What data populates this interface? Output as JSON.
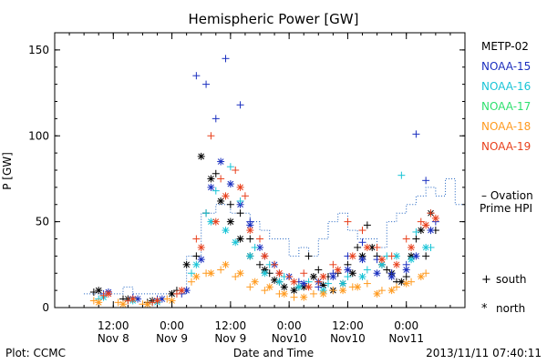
{
  "chart_data": {
    "type": "scatter",
    "title": "Hemispheric Power [GW]",
    "ylabel": "P [GW]",
    "xlabel": "Date and Time",
    "ylim": [
      0,
      160
    ],
    "xlim": [
      0,
      84
    ],
    "grid": false,
    "legend_position": "right",
    "yticks": [
      {
        "v": 0,
        "label": "0"
      },
      {
        "v": 50,
        "label": "50"
      },
      {
        "v": 100,
        "label": "100"
      },
      {
        "v": 150,
        "label": "150"
      }
    ],
    "xticks": [
      {
        "v": 12,
        "l1": "12:00",
        "l2": "Nov 8"
      },
      {
        "v": 24,
        "l1": "0:00",
        "l2": "Nov 9"
      },
      {
        "v": 36,
        "l1": "12:00",
        "l2": "Nov 9"
      },
      {
        "v": 48,
        "l1": "0:00",
        "l2": "Nov10"
      },
      {
        "v": 60,
        "l1": "12:00",
        "l2": "Nov10"
      },
      {
        "v": 72,
        "l1": "0:00",
        "l2": "Nov11"
      }
    ],
    "markers_note": {
      "south": "+",
      "north": "*"
    },
    "series": [
      {
        "name": "METP-02",
        "color": "#000000",
        "south": [
          [
            8,
            9
          ],
          [
            14,
            5
          ],
          [
            19,
            3
          ],
          [
            25,
            10
          ],
          [
            29,
            30
          ],
          [
            31,
            55
          ],
          [
            33,
            78
          ],
          [
            36,
            60
          ],
          [
            38,
            55
          ],
          [
            40,
            40
          ],
          [
            42,
            25
          ],
          [
            44,
            20
          ],
          [
            46,
            15
          ],
          [
            50,
            12
          ],
          [
            52,
            30
          ],
          [
            54,
            22
          ],
          [
            56,
            18
          ],
          [
            58,
            20
          ],
          [
            60,
            25
          ],
          [
            62,
            35
          ],
          [
            64,
            48
          ],
          [
            66,
            30
          ],
          [
            68,
            22
          ],
          [
            70,
            15
          ],
          [
            72,
            18
          ],
          [
            74,
            40
          ],
          [
            76,
            30
          ],
          [
            78,
            45
          ]
        ],
        "north": [
          [
            9,
            10
          ],
          [
            15,
            5
          ],
          [
            20,
            4
          ],
          [
            24,
            8
          ],
          [
            27,
            25
          ],
          [
            30,
            88
          ],
          [
            32,
            75
          ],
          [
            34,
            62
          ],
          [
            36,
            50
          ],
          [
            38,
            40
          ],
          [
            40,
            30
          ],
          [
            43,
            22
          ],
          [
            45,
            16
          ],
          [
            47,
            12
          ],
          [
            49,
            10
          ],
          [
            51,
            12
          ],
          [
            53,
            18
          ],
          [
            55,
            13
          ],
          [
            57,
            10
          ],
          [
            59,
            14
          ],
          [
            61,
            20
          ],
          [
            63,
            30
          ],
          [
            65,
            35
          ],
          [
            67,
            25
          ],
          [
            69,
            20
          ],
          [
            71,
            15
          ],
          [
            73,
            30
          ],
          [
            75,
            45
          ],
          [
            77,
            55
          ]
        ]
      },
      {
        "name": "NOAA-15",
        "color": "#1a2fbf",
        "south": [
          [
            10,
            8
          ],
          [
            16,
            6
          ],
          [
            21,
            5
          ],
          [
            26,
            8
          ],
          [
            29,
            135
          ],
          [
            31,
            130
          ],
          [
            33,
            110
          ],
          [
            35,
            145
          ],
          [
            38,
            118
          ],
          [
            40,
            50
          ],
          [
            43,
            30
          ],
          [
            46,
            20
          ],
          [
            50,
            15
          ],
          [
            54,
            12
          ],
          [
            57,
            20
          ],
          [
            60,
            30
          ],
          [
            63,
            38
          ],
          [
            66,
            28
          ],
          [
            69,
            20
          ],
          [
            72,
            25
          ],
          [
            74,
            101
          ],
          [
            76,
            74
          ],
          [
            78,
            50
          ]
        ],
        "north": [
          [
            11,
            9
          ],
          [
            17,
            5
          ],
          [
            22,
            5
          ],
          [
            27,
            10
          ],
          [
            30,
            28
          ],
          [
            32,
            70
          ],
          [
            34,
            85
          ],
          [
            36,
            72
          ],
          [
            38,
            60
          ],
          [
            40,
            48
          ],
          [
            42,
            35
          ],
          [
            45,
            25
          ],
          [
            48,
            18
          ],
          [
            51,
            14
          ],
          [
            54,
            15
          ],
          [
            57,
            18
          ],
          [
            60,
            22
          ],
          [
            63,
            28
          ],
          [
            66,
            20
          ],
          [
            69,
            18
          ],
          [
            72,
            22
          ],
          [
            74,
            30
          ],
          [
            77,
            45
          ]
        ]
      },
      {
        "name": "NOAA-16",
        "color": "#19c4d6",
        "south": [
          [
            9,
            5
          ],
          [
            15,
            4
          ],
          [
            20,
            3
          ],
          [
            28,
            20
          ],
          [
            31,
            55
          ],
          [
            33,
            68
          ],
          [
            36,
            82
          ],
          [
            38,
            62
          ],
          [
            41,
            35
          ],
          [
            44,
            25
          ],
          [
            47,
            18
          ],
          [
            52,
            15
          ],
          [
            56,
            14
          ],
          [
            60,
            18
          ],
          [
            64,
            22
          ],
          [
            68,
            30
          ],
          [
            71,
            77
          ],
          [
            74,
            44
          ],
          [
            77,
            35
          ]
        ],
        "north": [
          [
            10,
            6
          ],
          [
            16,
            4
          ],
          [
            21,
            3
          ],
          [
            29,
            25
          ],
          [
            32,
            50
          ],
          [
            35,
            45
          ],
          [
            37,
            38
          ],
          [
            40,
            30
          ],
          [
            43,
            20
          ],
          [
            46,
            15
          ],
          [
            50,
            12
          ],
          [
            55,
            10
          ],
          [
            59,
            14
          ],
          [
            63,
            18
          ],
          [
            67,
            25
          ],
          [
            70,
            30
          ],
          [
            73,
            28
          ],
          [
            76,
            35
          ]
        ]
      },
      {
        "name": "NOAA-17",
        "color": "#2ee06f",
        "south": [],
        "north": []
      },
      {
        "name": "NOAA-18",
        "color": "#ff9a1f",
        "south": [
          [
            8,
            4
          ],
          [
            13,
            3
          ],
          [
            18,
            2
          ],
          [
            23,
            5
          ],
          [
            28,
            15
          ],
          [
            31,
            20
          ],
          [
            34,
            22
          ],
          [
            37,
            18
          ],
          [
            40,
            12
          ],
          [
            43,
            10
          ],
          [
            46,
            8
          ],
          [
            49,
            6
          ],
          [
            53,
            8
          ],
          [
            57,
            10
          ],
          [
            61,
            12
          ],
          [
            64,
            14
          ],
          [
            67,
            10
          ],
          [
            70,
            12
          ],
          [
            73,
            15
          ],
          [
            76,
            20
          ]
        ],
        "north": [
          [
            9,
            3
          ],
          [
            14,
            2
          ],
          [
            19,
            2
          ],
          [
            24,
            4
          ],
          [
            29,
            18
          ],
          [
            32,
            20
          ],
          [
            35,
            25
          ],
          [
            38,
            20
          ],
          [
            41,
            15
          ],
          [
            44,
            12
          ],
          [
            47,
            8
          ],
          [
            51,
            6
          ],
          [
            55,
            8
          ],
          [
            59,
            10
          ],
          [
            62,
            12
          ],
          [
            66,
            8
          ],
          [
            69,
            10
          ],
          [
            72,
            14
          ],
          [
            75,
            18
          ]
        ]
      },
      {
        "name": "NOAA-19",
        "color": "#e8401c",
        "south": [
          [
            10,
            7
          ],
          [
            15,
            4
          ],
          [
            20,
            3
          ],
          [
            25,
            8
          ],
          [
            29,
            40
          ],
          [
            32,
            100
          ],
          [
            34,
            75
          ],
          [
            37,
            80
          ],
          [
            39,
            65
          ],
          [
            42,
            40
          ],
          [
            45,
            25
          ],
          [
            48,
            18
          ],
          [
            51,
            20
          ],
          [
            54,
            15
          ],
          [
            57,
            25
          ],
          [
            60,
            50
          ],
          [
            63,
            45
          ],
          [
            66,
            35
          ],
          [
            69,
            30
          ],
          [
            72,
            40
          ],
          [
            75,
            50
          ],
          [
            77,
            55
          ]
        ],
        "north": [
          [
            11,
            8
          ],
          [
            16,
            5
          ],
          [
            21,
            4
          ],
          [
            26,
            10
          ],
          [
            30,
            35
          ],
          [
            33,
            50
          ],
          [
            35,
            65
          ],
          [
            38,
            70
          ],
          [
            40,
            45
          ],
          [
            43,
            30
          ],
          [
            46,
            20
          ],
          [
            49,
            15
          ],
          [
            52,
            12
          ],
          [
            55,
            18
          ],
          [
            58,
            22
          ],
          [
            61,
            30
          ],
          [
            64,
            35
          ],
          [
            67,
            28
          ],
          [
            70,
            25
          ],
          [
            73,
            35
          ],
          [
            76,
            48
          ],
          [
            78,
            52
          ]
        ]
      }
    ],
    "ovation": {
      "name": "Ovation Prime HPI",
      "label_line1": "– Ovation",
      "label_line2": "Prime HPI",
      "color": "#1a5fbf",
      "values": [
        [
          6,
          8
        ],
        [
          12,
          8
        ],
        [
          14,
          12
        ],
        [
          16,
          8
        ],
        [
          22,
          8
        ],
        [
          26,
          8
        ],
        [
          27,
          30
        ],
        [
          29,
          30
        ],
        [
          30,
          55
        ],
        [
          32,
          55
        ],
        [
          33,
          60
        ],
        [
          35,
          60
        ],
        [
          36,
          55
        ],
        [
          38,
          55
        ],
        [
          40,
          50
        ],
        [
          42,
          45
        ],
        [
          44,
          40
        ],
        [
          46,
          40
        ],
        [
          48,
          30
        ],
        [
          50,
          35
        ],
        [
          52,
          30
        ],
        [
          54,
          40
        ],
        [
          56,
          50
        ],
        [
          58,
          55
        ],
        [
          60,
          45
        ],
        [
          62,
          40
        ],
        [
          64,
          40
        ],
        [
          66,
          35
        ],
        [
          68,
          50
        ],
        [
          70,
          55
        ],
        [
          72,
          60
        ],
        [
          74,
          65
        ],
        [
          76,
          70
        ],
        [
          78,
          65
        ],
        [
          80,
          75
        ],
        [
          82,
          60
        ],
        [
          84,
          58
        ]
      ]
    }
  },
  "footer": {
    "plot_credit": "Plot: CCMC",
    "timestamp": "2013/11/11 07:40:11"
  },
  "legend_symbols": {
    "south_label": "south",
    "south_symbol": "+",
    "north_label": "north",
    "north_symbol": "*"
  }
}
